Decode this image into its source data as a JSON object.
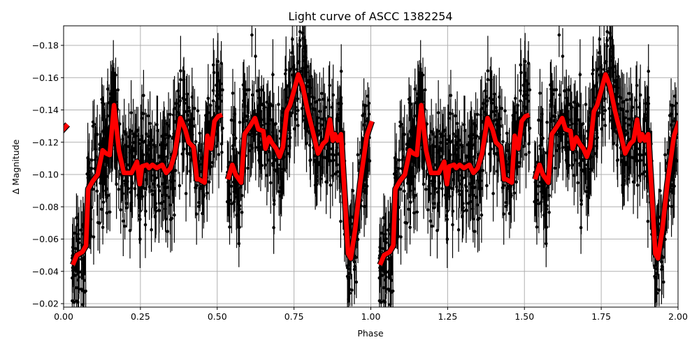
{
  "chart_data": {
    "type": "scatter",
    "title": "Light curve of ASCC 1382254",
    "xlabel": "Phase",
    "ylabel": "Δ Magnitude",
    "xlim": [
      0.0,
      2.0
    ],
    "ylim": [
      -0.019,
      -0.192
    ],
    "y_inverted": true,
    "grid": true,
    "x_ticks": [
      "0.00",
      "0.25",
      "0.50",
      "0.75",
      "1.00",
      "1.25",
      "1.50",
      "1.75",
      "2.00"
    ],
    "x_tick_values": [
      0,
      0.25,
      0.5,
      0.75,
      1.0,
      1.25,
      1.5,
      1.75,
      2.0
    ],
    "y_ticks": [
      "−0.18",
      "−0.16",
      "−0.14",
      "−0.12",
      "−0.10",
      "−0.08",
      "−0.06",
      "−0.04",
      "−0.02"
    ],
    "y_tick_values": [
      -0.18,
      -0.16,
      -0.14,
      -0.12,
      -0.1,
      -0.08,
      -0.06,
      -0.04,
      -0.02
    ],
    "series": [
      {
        "name": "observations",
        "style": "black points with vertical error bars",
        "color": "#000000",
        "description": "Dense phase-folded photometry, repeated for phase 0–1 and 1–2; scatter roughly ±0.04 mag around model"
      },
      {
        "name": "binned model",
        "style": "thick red line with black outline",
        "color": "#ff0000",
        "x": [
          0.03,
          0.043,
          0.061,
          0.073,
          0.08,
          0.095,
          0.111,
          0.127,
          0.139,
          0.15,
          0.164,
          0.18,
          0.196,
          0.221,
          0.239,
          0.248,
          0.255,
          0.271,
          0.278,
          0.289,
          0.303,
          0.321,
          0.334,
          0.348,
          0.362,
          0.38,
          0.396,
          0.407,
          0.423,
          0.434,
          0.441,
          0.459,
          0.468,
          0.48,
          0.491,
          0.503,
          0.516,
          0.535,
          0.549,
          0.56,
          0.578,
          0.589,
          0.607,
          0.623,
          0.634,
          0.65,
          0.657,
          0.669,
          0.68,
          0.692,
          0.703,
          0.714,
          0.726,
          0.737,
          0.764,
          0.778,
          0.794,
          0.812,
          0.828,
          0.844,
          0.855,
          0.867,
          0.876,
          0.883,
          0.892,
          0.903,
          0.914,
          0.926,
          0.935,
          0.949,
          0.965,
          0.987,
          1.003
        ],
        "values": [
          -0.044,
          -0.05,
          -0.052,
          -0.056,
          -0.091,
          -0.096,
          -0.1,
          -0.115,
          -0.113,
          -0.112,
          -0.143,
          -0.115,
          -0.101,
          -0.101,
          -0.108,
          -0.094,
          -0.105,
          -0.106,
          -0.104,
          -0.106,
          -0.104,
          -0.106,
          -0.101,
          -0.104,
          -0.113,
          -0.135,
          -0.128,
          -0.12,
          -0.117,
          -0.097,
          -0.097,
          -0.095,
          -0.124,
          -0.116,
          -0.133,
          -0.136,
          -0.137,
          -0.097,
          -0.106,
          -0.1,
          -0.095,
          -0.125,
          -0.13,
          -0.135,
          -0.128,
          -0.127,
          -0.116,
          -0.123,
          -0.119,
          -0.116,
          -0.111,
          -0.117,
          -0.139,
          -0.143,
          -0.162,
          -0.155,
          -0.14,
          -0.126,
          -0.113,
          -0.119,
          -0.121,
          -0.134,
          -0.121,
          -0.125,
          -0.121,
          -0.125,
          -0.09,
          -0.051,
          -0.048,
          -0.066,
          -0.094,
          -0.124,
          -0.133
        ]
      }
    ]
  }
}
